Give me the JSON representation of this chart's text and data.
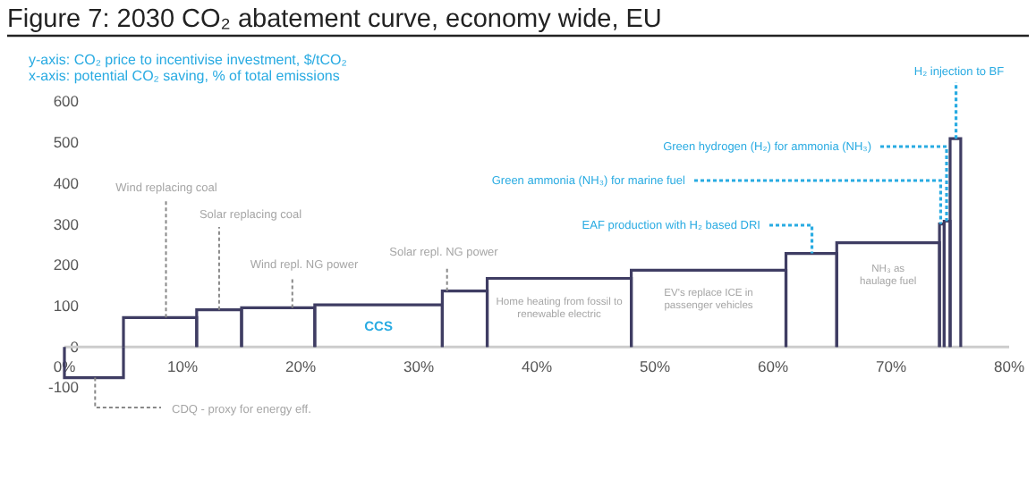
{
  "chart_data": {
    "type": "histogram",
    "title": "Figure 7: 2030 CO₂ abatement curve, economy wide, EU",
    "ylabel": "y-axis: CO₂ price to incentivise investment, $/tCO₂",
    "xlabel": "x-axis: potential CO₂ saving, % of total emissions",
    "bins": [
      0,
      5.0,
      11.2,
      15.0,
      21.2,
      32.0,
      35.8,
      48.0,
      61.1,
      65.4,
      74.1,
      74.5,
      75.0,
      75.9
    ],
    "values": [
      -75,
      72,
      91,
      96,
      103,
      137,
      168,
      188,
      229,
      255,
      301,
      308,
      510
    ],
    "color": "#3f3d63",
    "xlim": [
      0,
      80
    ],
    "xticks": [
      {
        "value": 0,
        "label": "0%"
      },
      {
        "value": 10,
        "label": "10%"
      },
      {
        "value": 20,
        "label": "20%"
      },
      {
        "value": 30,
        "label": "30%"
      },
      {
        "value": 40,
        "label": "40%"
      },
      {
        "value": 50,
        "label": "50%"
      },
      {
        "value": 60,
        "label": "60%"
      },
      {
        "value": 70,
        "label": "70%"
      },
      {
        "value": 80,
        "label": "80%"
      }
    ],
    "ylim": [
      -100,
      600
    ],
    "yticks": [
      -100,
      0,
      100,
      200,
      300,
      400,
      500,
      600
    ],
    "grid": false,
    "annotations": [
      {
        "text": "CDQ - proxy for energy eff.",
        "x": 2.6,
        "y": -75
      },
      {
        "text": "Wind replacing coal",
        "x": 8.6,
        "y": 72
      },
      {
        "text": "Solar replacing coal",
        "x": 13.1,
        "y": 91
      },
      {
        "text": "Wind repl. NG power",
        "x": 19.3,
        "y": 96
      },
      {
        "text": "Solar repl. NG power",
        "x": 32.4,
        "y": 137
      },
      "CCS",
      "Home heating from fossil to renewable electric",
      "EV's replace ICE in passenger vehicles",
      "NH₃ as haulage fuel",
      {
        "text": "EAF production with H₂ based DRI",
        "x": 63.3,
        "y": 229
      },
      {
        "text": "Green ammonia (NH₃) for marine fuel",
        "x": 74.2,
        "y": 301
      },
      {
        "text": "Green hydrogen (H₂) for ammonia (NH₃)",
        "x": 74.7,
        "y": 308
      },
      {
        "text": "H₂ injection to BF",
        "x": 75.5,
        "y": 510
      }
    ]
  }
}
